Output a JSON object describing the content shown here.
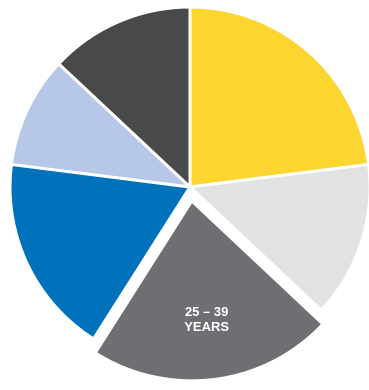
{
  "chart_data": {
    "type": "pie",
    "categories": [
      null,
      null,
      "25 – 39\nYEARS",
      null,
      null,
      null
    ],
    "values": [
      23,
      14,
      22,
      18,
      10,
      13
    ],
    "colors": [
      "#fdd531",
      "#e1e2e3",
      "#6e6f72",
      "#0072bc",
      "#b7c7e7",
      "#48494b"
    ],
    "exploded": 2
  }
}
